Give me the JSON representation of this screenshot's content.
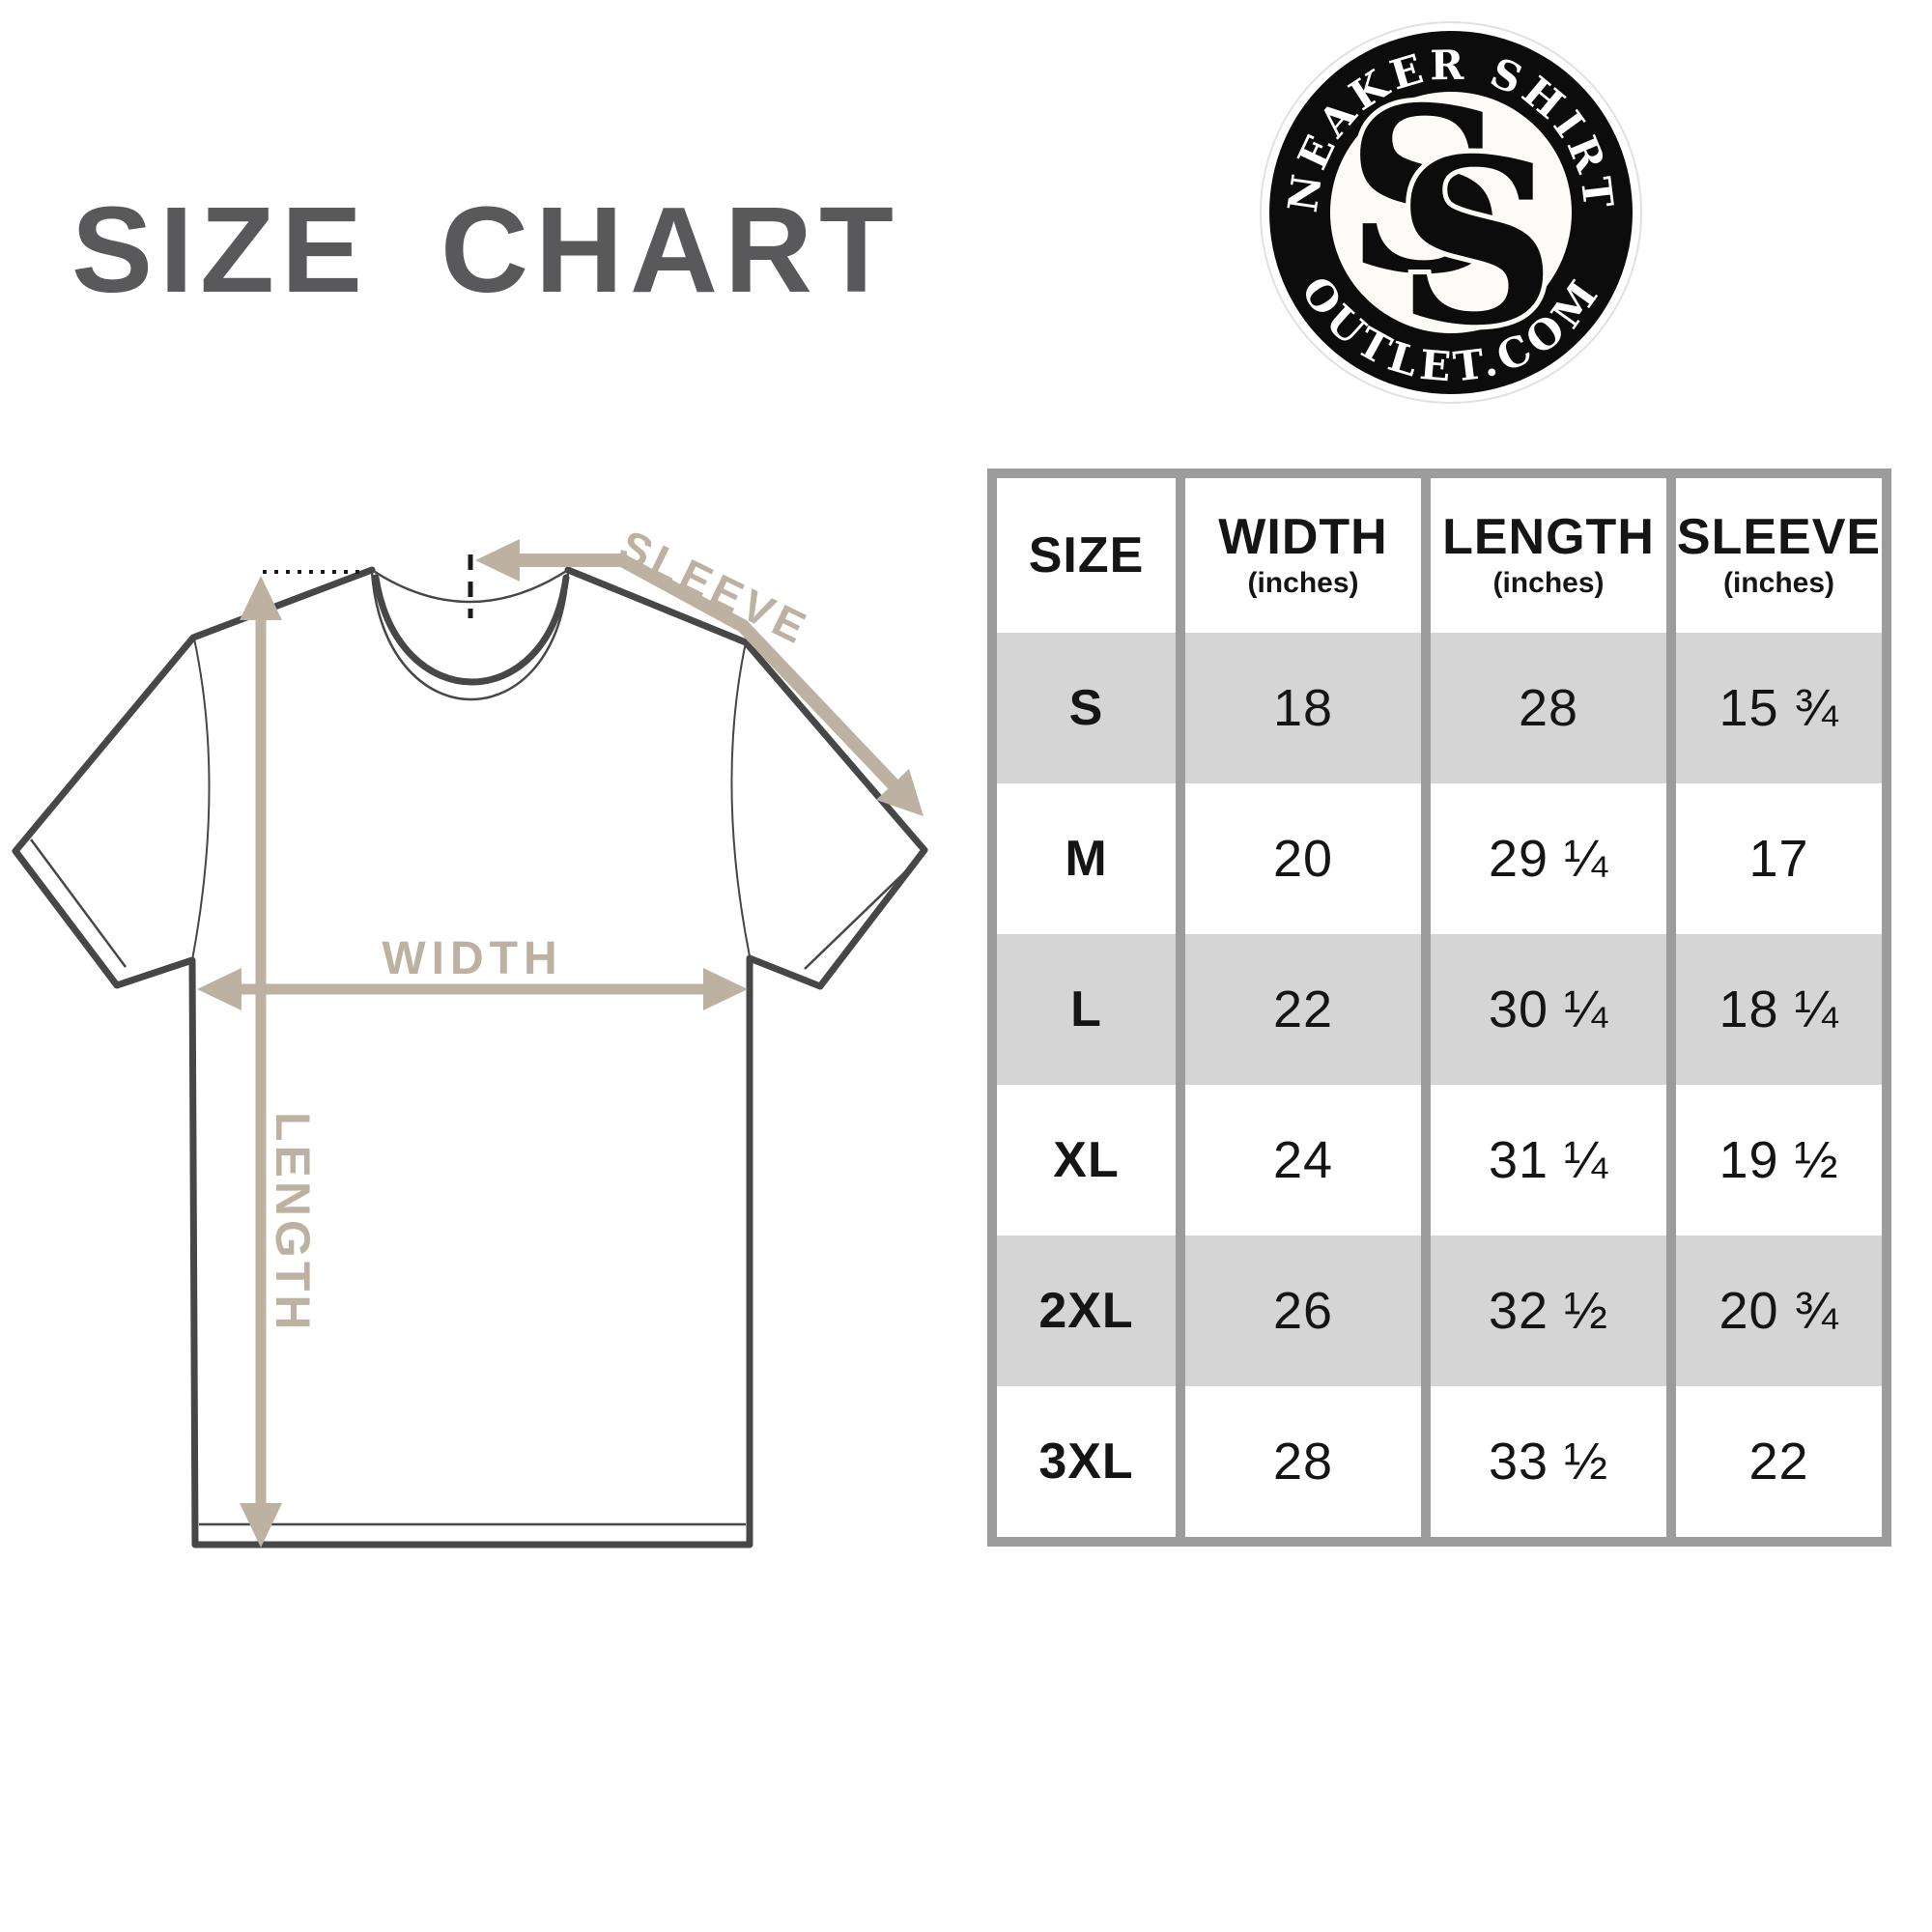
{
  "title": "SIZE CHART",
  "colors": {
    "title": "#59595b",
    "shirt_outline": "#474747",
    "measure_tan": "#bdb1a1",
    "table_grid": "#9c9c9c",
    "row_alt_gray": "#d5d5d5",
    "text_black": "#151515",
    "logo_black": "#0c0c0c"
  },
  "logo": {
    "top_text": "SNEAKER SHIRTS",
    "bottom_text": "OUTLET.COM",
    "monogram_letter": "S"
  },
  "diagram": {
    "labels": {
      "sleeve": "SLEEVE",
      "width": "WIDTH",
      "length": "LENGTH"
    }
  },
  "table": {
    "header": [
      {
        "label": "SIZE",
        "sub": ""
      },
      {
        "label": "WIDTH",
        "sub": "(inches)"
      },
      {
        "label": "LENGTH",
        "sub": "(inches)"
      },
      {
        "label": "SLEEVE",
        "sub": "(inches)"
      }
    ]
  },
  "chart_data": {
    "type": "table",
    "title": "SIZE CHART",
    "columns": [
      "SIZE",
      "WIDTH (inches)",
      "LENGTH (inches)",
      "SLEEVE (inches)"
    ],
    "rows": [
      {
        "size": "S",
        "width": "18",
        "length": "28",
        "sleeve": "15 ¾"
      },
      {
        "size": "M",
        "width": "20",
        "length": "29 ¼",
        "sleeve": "17"
      },
      {
        "size": "L",
        "width": "22",
        "length": "30 ¼",
        "sleeve": "18 ¼"
      },
      {
        "size": "XL",
        "width": "24",
        "length": "31 ¼",
        "sleeve": "19 ½"
      },
      {
        "size": "2XL",
        "width": "26",
        "length": "32 ½",
        "sleeve": "20 ¾"
      },
      {
        "size": "3XL",
        "width": "28",
        "length": "33 ½",
        "sleeve": "22"
      }
    ]
  }
}
